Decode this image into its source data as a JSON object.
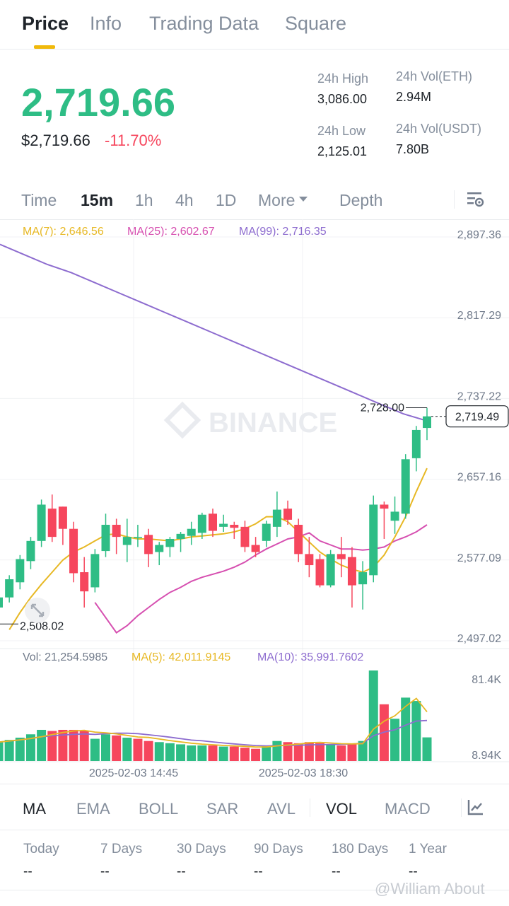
{
  "top_tabs": [
    {
      "label": "Price",
      "active": true
    },
    {
      "label": "Info",
      "active": false
    },
    {
      "label": "Trading Data",
      "active": false
    },
    {
      "label": "Square",
      "active": false
    }
  ],
  "ticker": {
    "last_price": "2,719.66",
    "usd_price": "$2,719.66",
    "change_pct": "-11.70%",
    "stats": {
      "high_label": "24h High",
      "high_value": "3,086.00",
      "low_label": "24h Low",
      "low_value": "2,125.01",
      "vol_eth_label": "24h Vol(ETH)",
      "vol_eth_value": "2.94M",
      "vol_usdt_label": "24h Vol(USDT)",
      "vol_usdt_value": "7.80B"
    }
  },
  "intervals": {
    "time": "Time",
    "m15": "15m",
    "h1": "1h",
    "h4": "4h",
    "d1": "1D",
    "more": "More",
    "depth": "Depth",
    "settings_icon": "chart-settings-icon"
  },
  "ma_legend": {
    "ma7": "MA(7): 2,646.56",
    "ma25": "MA(25): 2,602.67",
    "ma99": "MA(99): 2,716.35"
  },
  "vol_legend": {
    "vol": "Vol: 21,254.5985",
    "ma5": "MA(5): 42,011.9145",
    "ma10": "MA(10): 35,991.7602"
  },
  "colors": {
    "up": "#2ebd85",
    "down": "#f6465d",
    "ma7": "#e7b824",
    "ma25": "#d64fb0",
    "ma99": "#8d6ccf",
    "accent": "#f0b90b"
  },
  "chart_data": {
    "type": "candlestick",
    "price_axis_ticks": [
      "2,897.36",
      "2,817.29",
      "2,737.22",
      "2,657.16",
      "2,577.09",
      "2,497.02"
    ],
    "price_axis_values": [
      2897.36,
      2817.29,
      2737.22,
      2657.16,
      2577.09,
      2497.02
    ],
    "volume_axis_ticks": [
      "81.4K",
      "8.94K"
    ],
    "time_labels": [
      "2025-02-03 14:45",
      "2025-02-03 18:30"
    ],
    "current_price_label": "2,719.49",
    "high_marker": "2,728.00",
    "low_marker": "2,508.02",
    "candles": [
      {
        "o": 2530,
        "h": 2545,
        "l": 2508,
        "c": 2540
      },
      {
        "o": 2540,
        "h": 2562,
        "l": 2535,
        "c": 2558
      },
      {
        "o": 2555,
        "h": 2582,
        "l": 2548,
        "c": 2578
      },
      {
        "o": 2576,
        "h": 2600,
        "l": 2568,
        "c": 2596
      },
      {
        "o": 2596,
        "h": 2637,
        "l": 2590,
        "c": 2632
      },
      {
        "o": 2628,
        "h": 2642,
        "l": 2595,
        "c": 2600
      },
      {
        "o": 2630,
        "h": 2630,
        "l": 2592,
        "c": 2608
      },
      {
        "o": 2608,
        "h": 2615,
        "l": 2555,
        "c": 2564
      },
      {
        "o": 2565,
        "h": 2580,
        "l": 2530,
        "c": 2546
      },
      {
        "o": 2550,
        "h": 2588,
        "l": 2545,
        "c": 2583
      },
      {
        "o": 2586,
        "h": 2623,
        "l": 2580,
        "c": 2612
      },
      {
        "o": 2612,
        "h": 2618,
        "l": 2583,
        "c": 2600
      },
      {
        "o": 2592,
        "h": 2618,
        "l": 2575,
        "c": 2600
      },
      {
        "o": 2600,
        "h": 2612,
        "l": 2590,
        "c": 2600
      },
      {
        "o": 2602,
        "h": 2608,
        "l": 2570,
        "c": 2583
      },
      {
        "o": 2585,
        "h": 2595,
        "l": 2572,
        "c": 2592
      },
      {
        "o": 2590,
        "h": 2600,
        "l": 2580,
        "c": 2598
      },
      {
        "o": 2598,
        "h": 2605,
        "l": 2585,
        "c": 2603
      },
      {
        "o": 2601,
        "h": 2615,
        "l": 2592,
        "c": 2608
      },
      {
        "o": 2604,
        "h": 2624,
        "l": 2598,
        "c": 2622
      },
      {
        "o": 2623,
        "h": 2628,
        "l": 2600,
        "c": 2606
      },
      {
        "o": 2610,
        "h": 2622,
        "l": 2605,
        "c": 2613
      },
      {
        "o": 2612,
        "h": 2615,
        "l": 2598,
        "c": 2609
      },
      {
        "o": 2610,
        "h": 2616,
        "l": 2585,
        "c": 2590
      },
      {
        "o": 2592,
        "h": 2600,
        "l": 2580,
        "c": 2585
      },
      {
        "o": 2596,
        "h": 2616,
        "l": 2590,
        "c": 2613
      },
      {
        "o": 2610,
        "h": 2645,
        "l": 2600,
        "c": 2627
      },
      {
        "o": 2628,
        "h": 2636,
        "l": 2612,
        "c": 2617
      },
      {
        "o": 2612,
        "h": 2618,
        "l": 2575,
        "c": 2583
      },
      {
        "o": 2583,
        "h": 2600,
        "l": 2560,
        "c": 2572
      },
      {
        "o": 2578,
        "h": 2583,
        "l": 2550,
        "c": 2552
      },
      {
        "o": 2552,
        "h": 2587,
        "l": 2550,
        "c": 2583
      },
      {
        "o": 2583,
        "h": 2600,
        "l": 2560,
        "c": 2578
      },
      {
        "o": 2580,
        "h": 2590,
        "l": 2530,
        "c": 2552
      },
      {
        "o": 2553,
        "h": 2576,
        "l": 2528,
        "c": 2565
      },
      {
        "o": 2562,
        "h": 2641,
        "l": 2555,
        "c": 2632
      },
      {
        "o": 2632,
        "h": 2635,
        "l": 2598,
        "c": 2628
      },
      {
        "o": 2616,
        "h": 2640,
        "l": 2603,
        "c": 2625
      },
      {
        "o": 2623,
        "h": 2682,
        "l": 2618,
        "c": 2677
      },
      {
        "o": 2678,
        "h": 2710,
        "l": 2665,
        "c": 2706
      },
      {
        "o": 2708,
        "h": 2728,
        "l": 2696,
        "c": 2719.49
      }
    ],
    "ma7": [
      2508,
      2525,
      2540,
      2553,
      2565,
      2577,
      2585,
      2590,
      2596,
      2602,
      2603,
      2600,
      2598,
      2598,
      2597,
      2596,
      2598,
      2600,
      2601,
      2602,
      2603,
      2605,
      2608,
      2613,
      2620,
      2620,
      2615,
      2605,
      2595,
      2585,
      2578,
      2572,
      2568,
      2565,
      2570,
      2582,
      2600,
      2620,
      2645,
      2668
    ],
    "ma25": [
      2535,
      2520,
      2505,
      2512,
      2522,
      2530,
      2538,
      2545,
      2550,
      2556,
      2560,
      2563,
      2566,
      2570,
      2575,
      2582,
      2588,
      2593,
      2598,
      2600,
      2604,
      2596,
      2592,
      2588,
      2588,
      2587,
      2588,
      2590,
      2596,
      2600,
      2605,
      2612
    ],
    "ma99": [
      2890,
      2880,
      2870,
      2862,
      2852,
      2842,
      2832,
      2822,
      2812,
      2802,
      2792,
      2782,
      2772,
      2762,
      2752,
      2742,
      2732,
      2722,
      2715
    ],
    "volumes": [
      {
        "v": 17000,
        "up": true
      },
      {
        "v": 19000,
        "up": true
      },
      {
        "v": 21000,
        "up": true
      },
      {
        "v": 24000,
        "up": true
      },
      {
        "v": 28000,
        "up": true
      },
      {
        "v": 27000,
        "up": false
      },
      {
        "v": 28000,
        "up": false
      },
      {
        "v": 28000,
        "up": false
      },
      {
        "v": 27000,
        "up": false
      },
      {
        "v": 20000,
        "up": true
      },
      {
        "v": 24000,
        "up": true
      },
      {
        "v": 23000,
        "up": false
      },
      {
        "v": 21000,
        "up": true
      },
      {
        "v": 20000,
        "up": false
      },
      {
        "v": 18000,
        "up": false
      },
      {
        "v": 17000,
        "up": true
      },
      {
        "v": 16000,
        "up": true
      },
      {
        "v": 15000,
        "up": true
      },
      {
        "v": 14000,
        "up": true
      },
      {
        "v": 14000,
        "up": true
      },
      {
        "v": 14000,
        "up": false
      },
      {
        "v": 13000,
        "up": true
      },
      {
        "v": 13000,
        "up": false
      },
      {
        "v": 12000,
        "up": false
      },
      {
        "v": 11000,
        "up": false
      },
      {
        "v": 14000,
        "up": true
      },
      {
        "v": 18000,
        "up": true
      },
      {
        "v": 17000,
        "up": false
      },
      {
        "v": 16000,
        "up": false
      },
      {
        "v": 17000,
        "up": false
      },
      {
        "v": 16000,
        "up": false
      },
      {
        "v": 15000,
        "up": true
      },
      {
        "v": 14000,
        "up": false
      },
      {
        "v": 15000,
        "up": false
      },
      {
        "v": 18000,
        "up": true
      },
      {
        "v": 81400,
        "up": true
      },
      {
        "v": 51000,
        "up": false
      },
      {
        "v": 38000,
        "up": true
      },
      {
        "v": 57000,
        "up": true
      },
      {
        "v": 54000,
        "up": true
      },
      {
        "v": 21254.5985,
        "up": true
      }
    ]
  },
  "indicators": [
    {
      "label": "MA",
      "active": true
    },
    {
      "label": "EMA",
      "active": false
    },
    {
      "label": "BOLL",
      "active": false
    },
    {
      "label": "SAR",
      "active": false
    },
    {
      "label": "AVL",
      "active": false
    },
    {
      "label": "VOL",
      "active": true
    },
    {
      "label": "MACD",
      "active": false
    }
  ],
  "performance": [
    {
      "label": "Today",
      "value": "--"
    },
    {
      "label": "7 Days",
      "value": "--"
    },
    {
      "label": "30 Days",
      "value": "--"
    },
    {
      "label": "90 Days",
      "value": "--"
    },
    {
      "label": "180 Days",
      "value": "--"
    },
    {
      "label": "1 Year",
      "value": "--"
    }
  ],
  "watermark": {
    "chart": "BINANCE",
    "footer": "@William About"
  }
}
